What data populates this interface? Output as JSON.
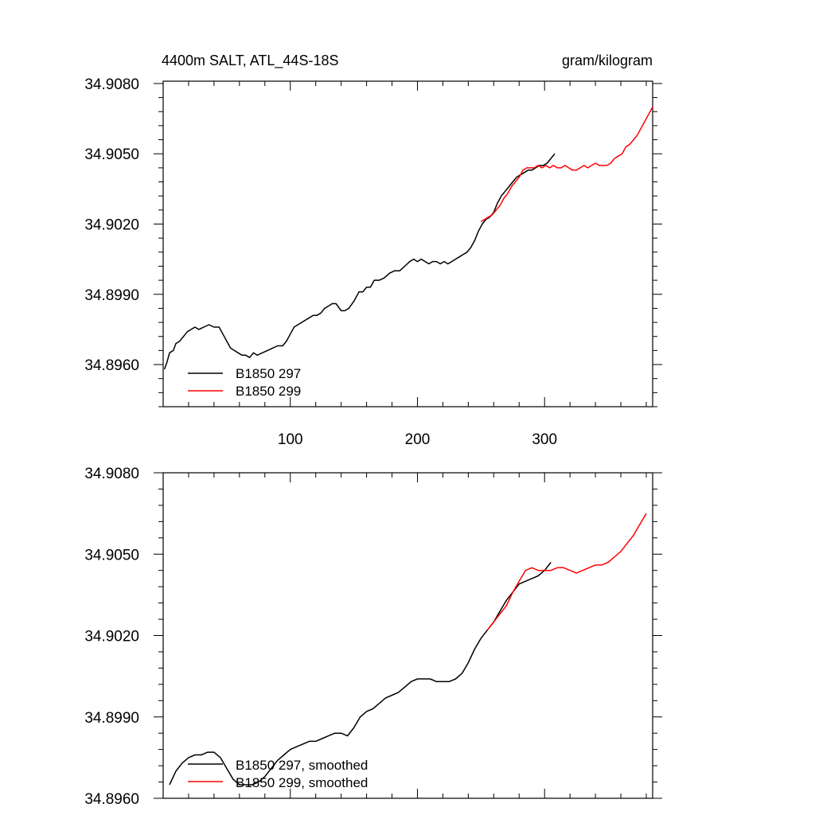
{
  "chart_data": [
    {
      "type": "line",
      "title": "4400m SALT, ATL_44S-18S",
      "units": "gram/kilogram",
      "xlim": [
        0,
        385
      ],
      "ylim": [
        34.8942,
        34.9081
      ],
      "xticks": [
        100,
        200,
        300
      ],
      "xtick_labels": [
        "100",
        "200",
        "300"
      ],
      "yticks": [
        34.896,
        34.899,
        34.902,
        34.905,
        34.908
      ],
      "ytick_labels": [
        "34.8960",
        "34.8990",
        "34.9020",
        "34.9050",
        "34.9080"
      ],
      "series": [
        {
          "name": "B1850 297",
          "color": "#000000",
          "x": [
            1,
            3,
            5,
            8,
            10,
            13,
            16,
            19,
            22,
            25,
            28,
            32,
            36,
            40,
            44,
            47,
            50,
            53,
            56,
            59,
            62,
            65,
            68,
            71,
            74,
            78,
            82,
            86,
            90,
            94,
            97,
            100,
            103,
            106,
            109,
            112,
            115,
            118,
            121,
            124,
            127,
            130,
            133,
            136,
            140,
            143,
            146,
            150,
            154,
            157,
            160,
            163,
            166,
            170,
            174,
            178,
            182,
            186,
            190,
            194,
            197,
            200,
            203,
            206,
            209,
            212,
            215,
            218,
            221,
            224,
            227,
            230,
            233,
            236,
            239,
            242,
            245,
            248,
            251,
            254,
            257,
            260,
            263,
            266,
            269,
            272,
            275,
            278,
            281,
            284,
            287,
            290,
            293,
            296,
            299,
            302,
            305,
            308
          ],
          "values": [
            34.8958,
            34.8961,
            34.8965,
            34.8966,
            34.8969,
            34.897,
            34.8972,
            34.8974,
            34.8975,
            34.8976,
            34.8975,
            34.8976,
            34.8977,
            34.8976,
            34.8976,
            34.8973,
            34.897,
            34.8967,
            34.8966,
            34.8965,
            34.8964,
            34.8964,
            34.8963,
            34.8965,
            34.8964,
            34.8965,
            34.8966,
            34.8967,
            34.8968,
            34.8968,
            34.897,
            34.8973,
            34.8976,
            34.8977,
            34.8978,
            34.8979,
            34.898,
            34.8981,
            34.8981,
            34.8982,
            34.8984,
            34.8985,
            34.8986,
            34.8986,
            34.8983,
            34.8983,
            34.8984,
            34.8987,
            34.8991,
            34.8991,
            34.8993,
            34.8993,
            34.8996,
            34.8996,
            34.8997,
            34.8999,
            34.9,
            34.9,
            34.9002,
            34.9004,
            34.9005,
            34.9004,
            34.9005,
            34.9004,
            34.9003,
            34.9004,
            34.9004,
            34.9003,
            34.9004,
            34.9003,
            34.9004,
            34.9005,
            34.9006,
            34.9007,
            34.9008,
            34.901,
            34.9013,
            34.9017,
            34.902,
            34.9022,
            34.9023,
            34.9025,
            34.9029,
            34.9032,
            34.9034,
            34.9036,
            34.9038,
            34.904,
            34.9041,
            34.9042,
            34.9043,
            34.9043,
            34.9044,
            34.9045,
            34.9045,
            34.9046,
            34.9048,
            34.905
          ]
        },
        {
          "name": "B1850 299",
          "color": "#ff0000",
          "x": [
            250,
            253,
            256,
            259,
            262,
            265,
            268,
            271,
            274,
            277,
            280,
            283,
            286,
            289,
            292,
            295,
            298,
            301,
            304,
            307,
            310,
            313,
            316,
            319,
            322,
            325,
            328,
            331,
            334,
            337,
            340,
            343,
            346,
            349,
            352,
            355,
            358,
            361,
            364,
            367,
            370,
            373,
            376,
            379,
            382,
            385
          ],
          "values": [
            34.9021,
            34.9022,
            34.9023,
            34.9024,
            34.9026,
            34.9028,
            34.9031,
            34.9033,
            34.9036,
            34.9038,
            34.904,
            34.9043,
            34.9044,
            34.9044,
            34.9044,
            34.9045,
            34.9044,
            34.9045,
            34.9044,
            34.9045,
            34.9044,
            34.9044,
            34.9045,
            34.9044,
            34.9043,
            34.9043,
            34.9044,
            34.9045,
            34.9044,
            34.9045,
            34.9046,
            34.9045,
            34.9045,
            34.9045,
            34.9046,
            34.9048,
            34.9049,
            34.905,
            34.9053,
            34.9054,
            34.9056,
            34.9058,
            34.9061,
            34.9064,
            34.9067,
            34.907
          ]
        }
      ],
      "legend": {
        "placement": "bottom-left",
        "labels": [
          "B1850 297",
          "B1850 299"
        ]
      }
    },
    {
      "type": "line",
      "title": "",
      "xlim": [
        0,
        385
      ],
      "ylim": [
        34.896,
        34.908
      ],
      "xticks": [
        100,
        200,
        300
      ],
      "xtick_labels": [
        "",
        "",
        ""
      ],
      "yticks": [
        34.896,
        34.899,
        34.902,
        34.905,
        34.908
      ],
      "ytick_labels": [
        "34.8960",
        "34.8990",
        "34.9020",
        "34.9050",
        "34.9080"
      ],
      "series": [
        {
          "name": "B1850 297, smoothed",
          "color": "#000000",
          "x": [
            5,
            10,
            15,
            20,
            25,
            30,
            35,
            40,
            45,
            50,
            55,
            60,
            65,
            70,
            75,
            80,
            85,
            90,
            95,
            100,
            105,
            110,
            115,
            120,
            125,
            130,
            135,
            140,
            145,
            150,
            155,
            160,
            165,
            170,
            175,
            180,
            185,
            190,
            195,
            200,
            205,
            210,
            215,
            220,
            225,
            230,
            235,
            240,
            245,
            250,
            255,
            260,
            265,
            270,
            275,
            280,
            285,
            290,
            295,
            300,
            305
          ],
          "values": [
            34.8965,
            34.897,
            34.8973,
            34.8975,
            34.8976,
            34.8976,
            34.8977,
            34.8977,
            34.8975,
            34.8971,
            34.8967,
            34.8965,
            34.8965,
            34.8965,
            34.8966,
            34.8968,
            34.8971,
            34.8974,
            34.8976,
            34.8978,
            34.8979,
            34.898,
            34.8981,
            34.8981,
            34.8982,
            34.8983,
            34.8984,
            34.8984,
            34.8983,
            34.8986,
            34.899,
            34.8992,
            34.8993,
            34.8995,
            34.8997,
            34.8998,
            34.8999,
            34.9001,
            34.9003,
            34.9004,
            34.9004,
            34.9004,
            34.9003,
            34.9003,
            34.9003,
            34.9004,
            34.9006,
            34.901,
            34.9015,
            34.9019,
            34.9022,
            34.9025,
            34.9029,
            34.9033,
            34.9036,
            34.9039,
            34.904,
            34.9041,
            34.9042,
            34.9044,
            34.9047
          ]
        },
        {
          "name": "B1850 299, smoothed",
          "color": "#ff0000",
          "x": [
            255,
            260,
            265,
            270,
            275,
            280,
            285,
            290,
            295,
            300,
            305,
            310,
            315,
            320,
            325,
            330,
            335,
            340,
            345,
            350,
            355,
            360,
            365,
            370,
            375,
            380
          ],
          "values": [
            34.9022,
            34.9025,
            34.9028,
            34.9031,
            34.9036,
            34.904,
            34.9044,
            34.9045,
            34.9044,
            34.9044,
            34.9044,
            34.9045,
            34.9045,
            34.9044,
            34.9043,
            34.9044,
            34.9045,
            34.9046,
            34.9046,
            34.9047,
            34.9049,
            34.9051,
            34.9054,
            34.9057,
            34.9061,
            34.9065
          ]
        }
      ],
      "legend": {
        "placement": "bottom-left",
        "labels": [
          "B1850 297, smoothed",
          "B1850 299, smoothed"
        ]
      }
    }
  ]
}
